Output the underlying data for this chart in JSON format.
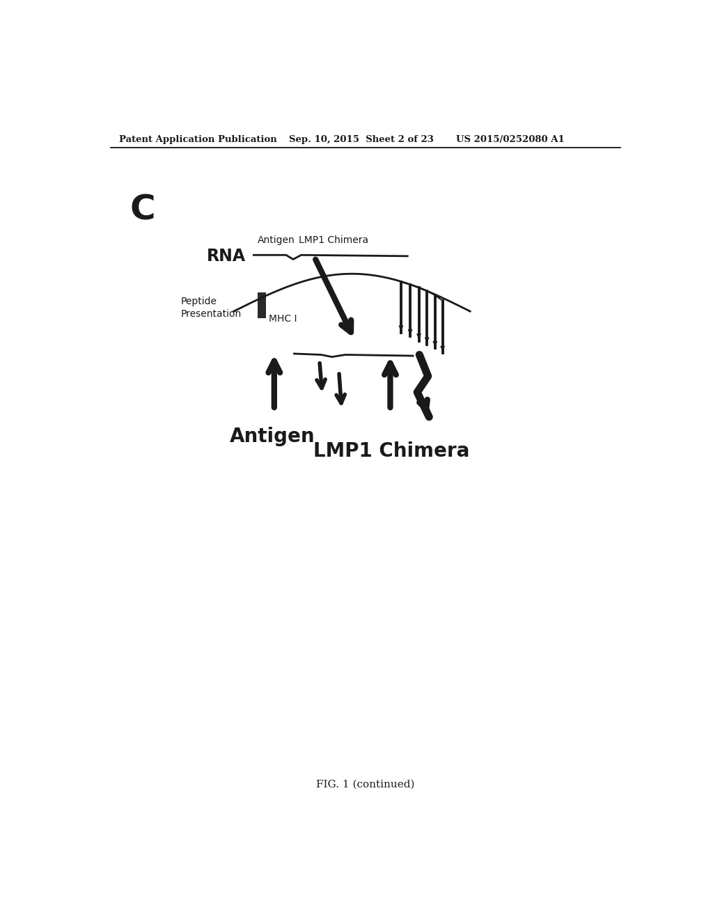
{
  "header_left": "Patent Application Publication",
  "header_mid": "Sep. 10, 2015  Sheet 2 of 23",
  "header_right": "US 2015/0252080 A1",
  "panel_label": "C",
  "rna_label": "RNA",
  "antigen_label_top": "Antigen",
  "lmp1_chimera_label_top": "LMP1 Chimera",
  "peptide_presentation_label": "Peptide\nPresentation",
  "mhc_label": "MHC I",
  "antigen_label_bottom": "Antigen",
  "lmp1_chimera_label_bottom": "LMP1 Chimera",
  "figure_caption": "FIG. 1 (continued)",
  "bg_color": "#ffffff",
  "text_color": "#1a1a1a",
  "line_color": "#1a1a1a",
  "arrow_color": "#1a1a1a"
}
